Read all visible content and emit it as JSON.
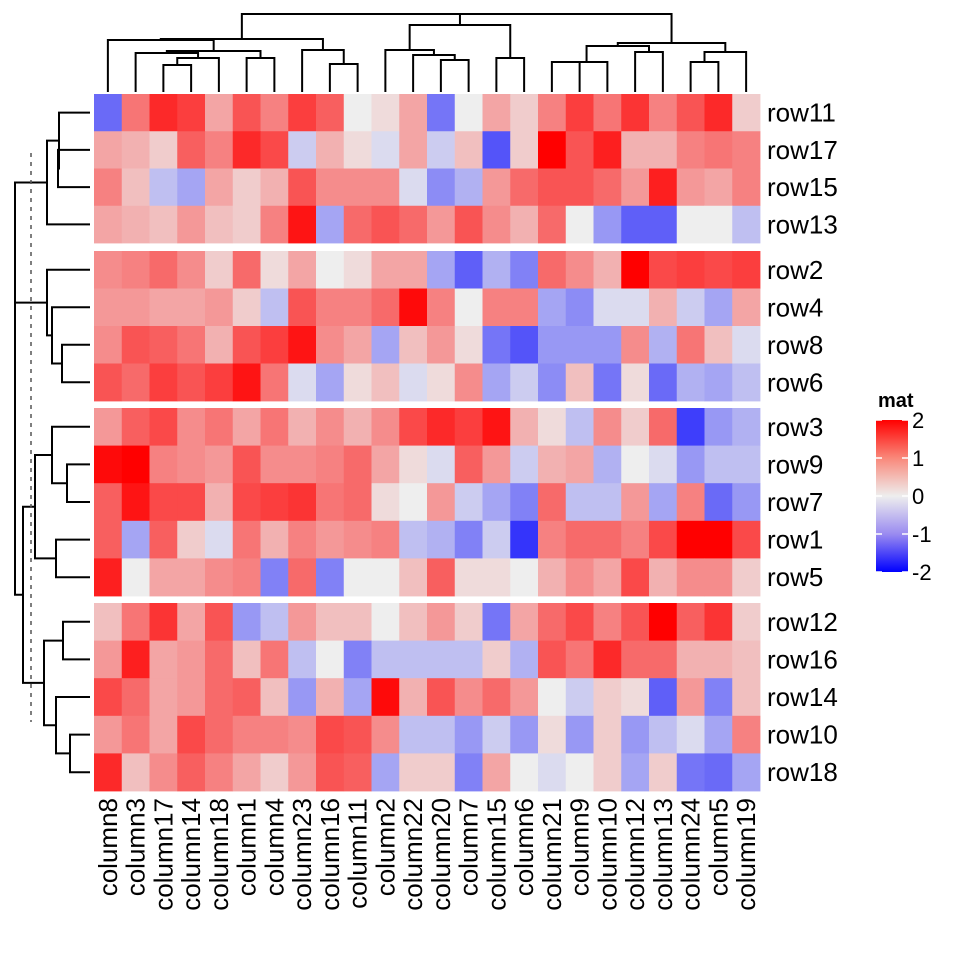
{
  "chart_data": {
    "type": "heatmap",
    "title": "",
    "legend": {
      "title": "mat",
      "position": "right",
      "ticks": [
        2,
        1,
        0,
        -1,
        -2
      ],
      "tick_labels": [
        "2",
        "1",
        "0",
        "-1",
        "-2"
      ],
      "range": [
        -2,
        2
      ],
      "colors": {
        "low": "#0000FF",
        "mid": "#EEEEEE",
        "high": "#FF0000"
      }
    },
    "columns": [
      "column8",
      "column3",
      "column17",
      "column14",
      "column18",
      "column1",
      "column4",
      "column23",
      "column16",
      "column11",
      "column2",
      "column22",
      "column20",
      "column7",
      "column15",
      "column6",
      "column21",
      "column9",
      "column10",
      "column12",
      "column13",
      "column24",
      "column5",
      "column19"
    ],
    "row_slices": [
      [
        "row11",
        "row17",
        "row15",
        "row13"
      ],
      [
        "row2",
        "row4",
        "row8",
        "row6"
      ],
      [
        "row3",
        "row9",
        "row7",
        "row1",
        "row5"
      ],
      [
        "row12",
        "row16",
        "row14",
        "row10",
        "row18"
      ]
    ],
    "values": {
      "row11": [
        -1.0,
        0.9,
        1.6,
        1.4,
        0.5,
        1.2,
        0.8,
        1.4,
        1.1,
        0.0,
        0.1,
        0.5,
        -0.9,
        0.0,
        0.5,
        0.2,
        0.8,
        1.4,
        0.9,
        1.5,
        0.8,
        1.2,
        1.6,
        0.2
      ],
      "row17": [
        0.5,
        0.4,
        0.2,
        1.1,
        0.8,
        1.6,
        1.3,
        -0.2,
        0.4,
        0.1,
        -0.1,
        0.5,
        -0.2,
        0.3,
        -1.2,
        0.2,
        2.0,
        1.2,
        1.7,
        0.4,
        0.4,
        0.8,
        0.9,
        0.8
      ],
      "row15": [
        0.8,
        0.3,
        -0.3,
        -0.5,
        0.5,
        0.2,
        0.4,
        1.2,
        0.7,
        0.7,
        0.7,
        -0.1,
        -0.7,
        -0.4,
        0.6,
        1.0,
        1.2,
        1.2,
        1.0,
        0.6,
        1.7,
        0.6,
        0.5,
        0.8
      ],
      "row13": [
        0.5,
        0.4,
        0.3,
        0.6,
        0.3,
        0.2,
        0.8,
        1.8,
        -0.5,
        1.0,
        1.2,
        1.0,
        0.6,
        1.2,
        0.7,
        0.4,
        1.0,
        0.0,
        -0.6,
        -1.1,
        -1.1,
        0.0,
        0.0,
        -0.3
      ],
      "row2": [
        0.7,
        0.8,
        1.0,
        0.7,
        0.2,
        1.0,
        0.1,
        0.5,
        0.0,
        0.1,
        0.5,
        0.5,
        -0.5,
        -1.1,
        -0.4,
        -0.8,
        1.0,
        0.7,
        0.4,
        2.0,
        1.3,
        1.4,
        1.3,
        1.4
      ],
      "row4": [
        0.6,
        0.6,
        0.5,
        0.5,
        0.6,
        0.2,
        -0.3,
        1.2,
        0.8,
        0.8,
        1.0,
        1.9,
        0.8,
        0.0,
        0.8,
        0.8,
        -0.5,
        -0.7,
        -0.1,
        -0.1,
        0.4,
        -0.2,
        -0.5,
        0.5
      ],
      "row8": [
        0.7,
        1.2,
        1.1,
        0.9,
        0.4,
        1.2,
        1.4,
        1.8,
        0.7,
        0.5,
        -0.5,
        0.3,
        0.6,
        0.1,
        -0.9,
        -1.2,
        -0.6,
        -0.6,
        -0.6,
        0.7,
        -0.4,
        0.9,
        0.3,
        -0.1
      ],
      "row6": [
        1.2,
        1.0,
        1.4,
        1.2,
        1.4,
        1.8,
        0.9,
        -0.1,
        -0.5,
        0.1,
        0.3,
        -0.1,
        0.1,
        0.7,
        -0.5,
        -0.2,
        -0.7,
        0.3,
        -0.9,
        0.1,
        -1.0,
        -0.4,
        -0.5,
        -0.3
      ],
      "row3": [
        0.6,
        1.1,
        1.3,
        0.7,
        0.9,
        0.5,
        0.9,
        0.4,
        0.7,
        0.4,
        0.7,
        1.3,
        1.6,
        1.4,
        1.8,
        0.4,
        0.1,
        -0.3,
        0.7,
        0.2,
        1.0,
        -1.4,
        -0.6,
        -0.4
      ],
      "row9": [
        1.9,
        2.0,
        0.8,
        0.7,
        0.6,
        1.2,
        0.7,
        0.7,
        0.8,
        1.0,
        0.5,
        0.1,
        -0.1,
        1.1,
        0.6,
        -0.2,
        0.4,
        0.5,
        -0.4,
        0.0,
        -0.1,
        -0.6,
        -0.3,
        -0.3
      ],
      "row7": [
        1.1,
        1.8,
        1.3,
        1.3,
        0.4,
        1.3,
        1.4,
        1.5,
        0.9,
        1.0,
        0.1,
        0.0,
        0.6,
        -0.2,
        -0.5,
        -0.8,
        1.0,
        -0.3,
        -0.3,
        0.6,
        -0.5,
        0.8,
        -1.0,
        -0.6
      ],
      "row1": [
        1.1,
        -0.5,
        1.1,
        0.2,
        -0.1,
        0.9,
        0.4,
        0.8,
        0.6,
        0.7,
        0.8,
        -0.3,
        -0.4,
        -0.8,
        -0.2,
        -1.5,
        0.8,
        1.0,
        1.0,
        0.8,
        1.3,
        2.0,
        2.0,
        1.3
      ],
      "row5": [
        1.7,
        0.0,
        0.5,
        0.5,
        0.7,
        0.8,
        -0.8,
        1.0,
        -0.8,
        0.0,
        0.0,
        0.3,
        1.1,
        0.1,
        0.1,
        0.0,
        0.4,
        0.7,
        0.5,
        1.3,
        0.4,
        0.7,
        0.7,
        0.2
      ],
      "row12": [
        0.3,
        0.9,
        1.5,
        0.5,
        1.2,
        -0.6,
        -0.3,
        0.6,
        0.3,
        0.3,
        0.0,
        0.3,
        0.6,
        0.2,
        -0.9,
        0.5,
        1.0,
        1.3,
        0.8,
        1.2,
        2.0,
        1.1,
        1.5,
        0.2
      ],
      "row16": [
        0.6,
        1.7,
        0.5,
        0.6,
        1.0,
        0.3,
        0.9,
        -0.3,
        0.0,
        -0.8,
        -0.3,
        -0.3,
        -0.3,
        -0.3,
        0.2,
        -0.4,
        1.2,
        0.9,
        1.6,
        1.0,
        1.0,
        0.4,
        0.4,
        0.3
      ],
      "row14": [
        1.3,
        1.0,
        0.5,
        0.6,
        1.0,
        1.1,
        0.3,
        -0.6,
        0.4,
        -0.5,
        1.9,
        0.4,
        1.2,
        0.7,
        1.0,
        0.6,
        0.0,
        -0.2,
        0.2,
        0.1,
        -1.1,
        0.6,
        -0.8,
        0.3
      ],
      "row10": [
        0.6,
        0.9,
        0.5,
        1.3,
        1.0,
        0.8,
        0.8,
        0.7,
        1.3,
        1.2,
        0.7,
        -0.3,
        -0.3,
        -0.6,
        -0.2,
        -0.6,
        0.1,
        -0.6,
        0.2,
        -0.6,
        -0.3,
        -0.1,
        -0.5,
        0.8
      ],
      "row18": [
        1.6,
        0.3,
        0.7,
        1.1,
        0.8,
        0.5,
        0.2,
        0.6,
        1.2,
        1.1,
        -0.5,
        0.2,
        0.2,
        -0.8,
        0.5,
        0.0,
        -0.1,
        0.0,
        0.2,
        -0.5,
        0.2,
        -0.9,
        -1.0,
        -0.5
      ]
    },
    "row_dendrogram": "hierarchical clustering, 4 slices (k-means split), dashed cut line",
    "column_dendrogram": "hierarchical clustering of 24 columns"
  }
}
